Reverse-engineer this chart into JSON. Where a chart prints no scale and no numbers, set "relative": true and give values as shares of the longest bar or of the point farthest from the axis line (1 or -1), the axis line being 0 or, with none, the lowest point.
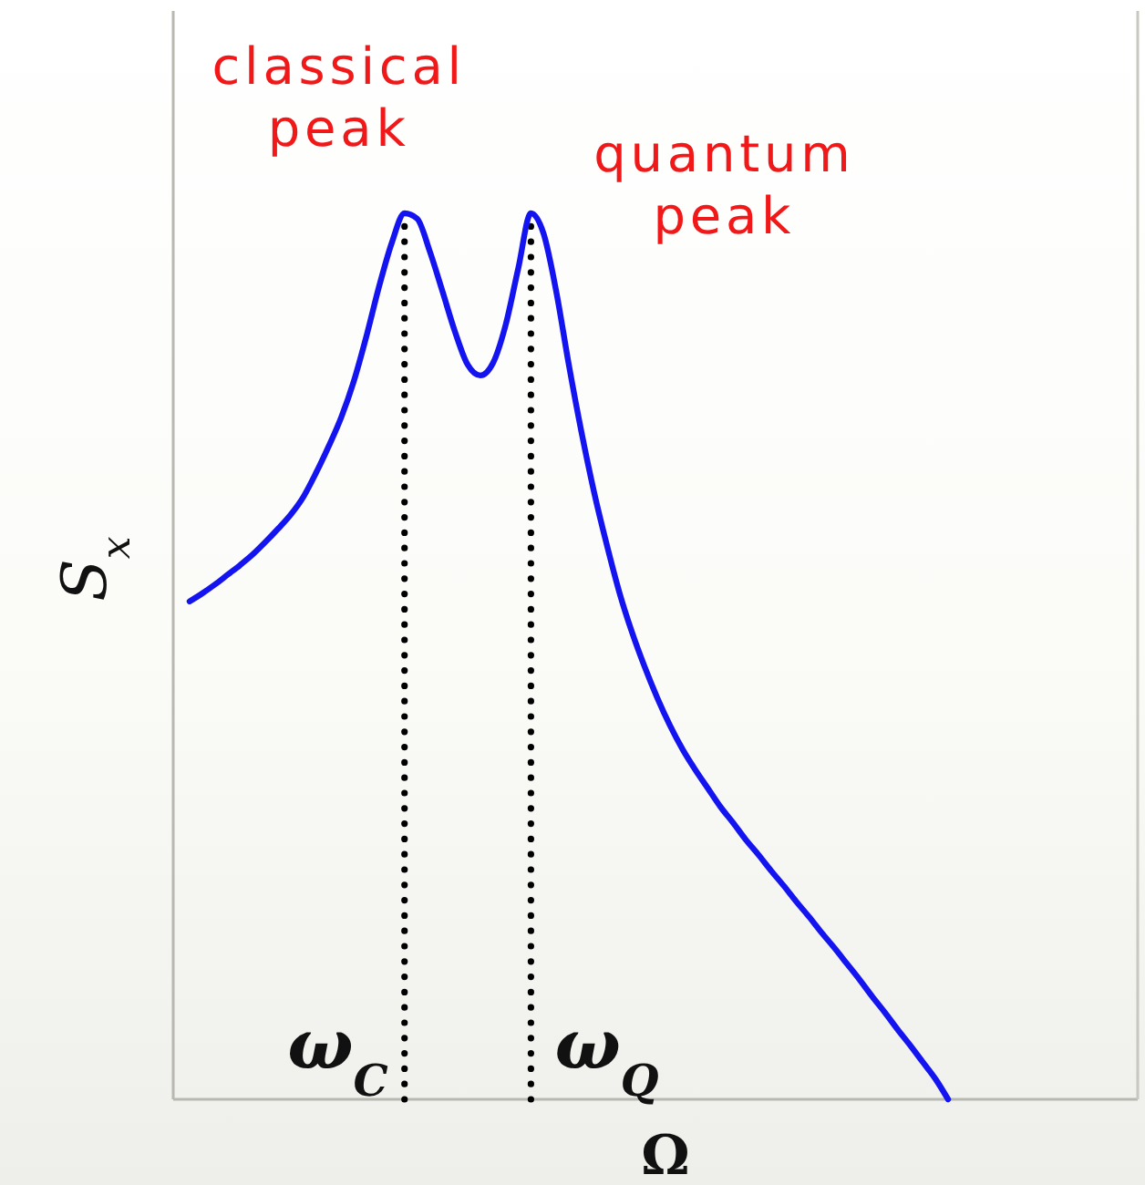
{
  "chart_data": {
    "type": "line",
    "xlabel": "Ω",
    "ylabel": "S$_{x}$",
    "relative": true,
    "categories": [
      null,
      null,
      null,
      null,
      null,
      null,
      null,
      null,
      null,
      null,
      null,
      null,
      null,
      null,
      null,
      null,
      null,
      null,
      null,
      null,
      null,
      null,
      null,
      null,
      null,
      null,
      null,
      null,
      null,
      null,
      null,
      null,
      null,
      null,
      null,
      null,
      null,
      null,
      null,
      null,
      null,
      null,
      null,
      null,
      null,
      null,
      null,
      null,
      null,
      null,
      null,
      null,
      null,
      null,
      null,
      null,
      null,
      null,
      null,
      null,
      null
    ],
    "values": [
      0.562,
      0.571,
      0.581,
      0.592,
      0.603,
      0.615,
      0.629,
      0.644,
      0.66,
      0.68,
      0.707,
      0.737,
      0.77,
      0.811,
      0.862,
      0.918,
      0.967,
      1.0,
      0.994,
      0.957,
      0.912,
      0.866,
      0.829,
      0.817,
      0.831,
      0.874,
      0.938,
      1.0,
      0.977,
      0.912,
      0.829,
      0.753,
      0.685,
      0.626,
      0.572,
      0.527,
      0.488,
      0.453,
      0.422,
      0.395,
      0.372,
      0.351,
      0.33,
      0.312,
      0.293,
      0.276,
      0.258,
      0.241,
      0.223,
      0.206,
      0.188,
      0.171,
      0.153,
      0.135,
      0.116,
      0.098,
      0.079,
      0.061,
      0.042,
      0.023,
      0.0
    ],
    "color": "#1414f0",
    "annotations": [
      "classical peak",
      "quantum peak",
      "ω$_{C}$",
      "ω$_{Q}$"
    ]
  }
}
